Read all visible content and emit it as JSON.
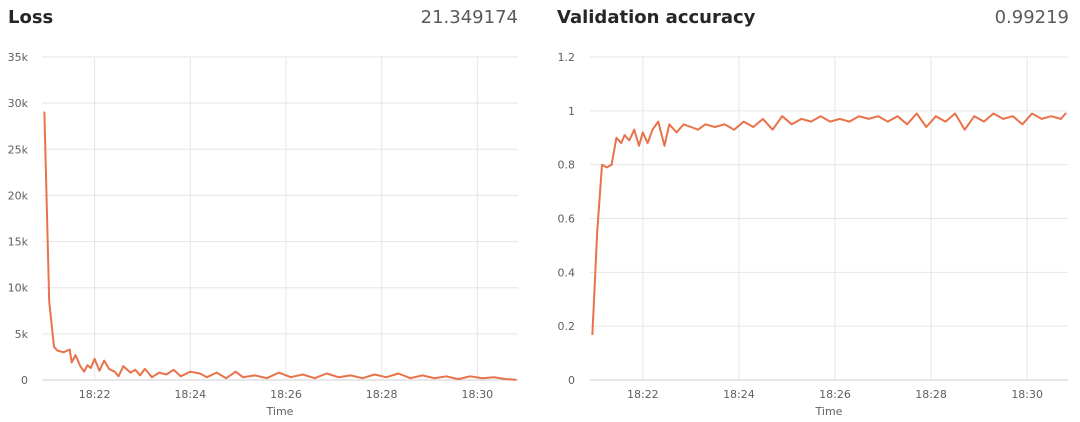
{
  "colors": {
    "line": "#e8734a",
    "grid": "#e6e6e6",
    "axis": "#cfcfcf"
  },
  "chart_data": [
    {
      "type": "line",
      "title": "Loss",
      "value": "21.349174",
      "xlabel": "Time",
      "ylabel": "",
      "x_tick_labels": [
        "18:22",
        "18:24",
        "18:26",
        "18:28",
        "18:30"
      ],
      "x_tick_minutes": [
        1342,
        1344,
        1346,
        1348,
        1350
      ],
      "y_ticks": [
        0,
        5000,
        10000,
        15000,
        20000,
        25000,
        30000,
        35000
      ],
      "y_tick_labels": [
        "0",
        "5k",
        "10k",
        "15k",
        "20k",
        "25k",
        "30k",
        "35k"
      ],
      "ylim": [
        0,
        35000
      ],
      "xlim_minutes": [
        1340.9,
        1350.85
      ],
      "grid": true,
      "series": [
        {
          "x_minutes": [
            1340.95,
            1341.05,
            1341.15,
            1341.22,
            1341.35,
            1341.48,
            1341.52,
            1341.6,
            1341.7,
            1341.78,
            1341.85,
            1341.92,
            1342.0,
            1342.1,
            1342.2,
            1342.3,
            1342.42,
            1342.5,
            1342.6,
            1342.75,
            1342.85,
            1342.95,
            1343.05,
            1343.2,
            1343.35,
            1343.5,
            1343.65,
            1343.8,
            1344.0,
            1344.2,
            1344.35,
            1344.55,
            1344.75,
            1344.95,
            1345.1,
            1345.35,
            1345.6,
            1345.85,
            1346.1,
            1346.35,
            1346.6,
            1346.85,
            1347.1,
            1347.35,
            1347.6,
            1347.85,
            1348.1,
            1348.35,
            1348.6,
            1348.85,
            1349.1,
            1349.35,
            1349.6,
            1349.85,
            1350.1,
            1350.35,
            1350.6,
            1350.8
          ],
          "y": [
            29000,
            8500,
            3600,
            3200,
            3000,
            3300,
            1900,
            2700,
            1500,
            900,
            1600,
            1300,
            2300,
            1000,
            2100,
            1200,
            900,
            400,
            1500,
            800,
            1100,
            500,
            1200,
            300,
            800,
            600,
            1100,
            400,
            900,
            700,
            300,
            800,
            200,
            900,
            300,
            500,
            200,
            800,
            300,
            600,
            200,
            700,
            300,
            500,
            200,
            600,
            300,
            700,
            200,
            500,
            200,
            400,
            100,
            400,
            200,
            300,
            100,
            21
          ]
        }
      ]
    },
    {
      "type": "line",
      "title": "Validation accuracy",
      "value": "0.99219",
      "xlabel": "Time",
      "ylabel": "",
      "x_tick_labels": [
        "18:22",
        "18:24",
        "18:26",
        "18:28",
        "18:30"
      ],
      "x_tick_minutes": [
        1342,
        1344,
        1346,
        1348,
        1350
      ],
      "y_ticks": [
        0,
        0.2,
        0.4,
        0.6,
        0.8,
        1.0,
        1.2
      ],
      "y_tick_labels": [
        "0",
        "0.2",
        "0.4",
        "0.6",
        "0.8",
        "1",
        "1.2"
      ],
      "ylim": [
        0,
        1.2
      ],
      "xlim_minutes": [
        1340.9,
        1350.85
      ],
      "grid": true,
      "series": [
        {
          "x_minutes": [
            1340.95,
            1341.05,
            1341.15,
            1341.25,
            1341.35,
            1341.45,
            1341.55,
            1341.62,
            1341.72,
            1341.82,
            1341.92,
            1342.0,
            1342.1,
            1342.2,
            1342.32,
            1342.45,
            1342.55,
            1342.7,
            1342.85,
            1343.0,
            1343.15,
            1343.3,
            1343.5,
            1343.7,
            1343.9,
            1344.1,
            1344.3,
            1344.5,
            1344.7,
            1344.9,
            1345.1,
            1345.3,
            1345.5,
            1345.7,
            1345.9,
            1346.1,
            1346.3,
            1346.5,
            1346.7,
            1346.9,
            1347.1,
            1347.3,
            1347.5,
            1347.7,
            1347.9,
            1348.1,
            1348.3,
            1348.5,
            1348.7,
            1348.9,
            1349.1,
            1349.3,
            1349.5,
            1349.7,
            1349.9,
            1350.1,
            1350.3,
            1350.5,
            1350.7,
            1350.8
          ],
          "y": [
            0.17,
            0.55,
            0.8,
            0.79,
            0.8,
            0.9,
            0.88,
            0.91,
            0.89,
            0.93,
            0.87,
            0.92,
            0.88,
            0.93,
            0.96,
            0.87,
            0.95,
            0.92,
            0.95,
            0.94,
            0.93,
            0.95,
            0.94,
            0.95,
            0.93,
            0.96,
            0.94,
            0.97,
            0.93,
            0.98,
            0.95,
            0.97,
            0.96,
            0.98,
            0.96,
            0.97,
            0.96,
            0.98,
            0.97,
            0.98,
            0.96,
            0.98,
            0.95,
            0.99,
            0.94,
            0.98,
            0.96,
            0.99,
            0.93,
            0.98,
            0.96,
            0.99,
            0.97,
            0.98,
            0.95,
            0.99,
            0.97,
            0.98,
            0.97,
            0.99
          ]
        }
      ]
    }
  ]
}
